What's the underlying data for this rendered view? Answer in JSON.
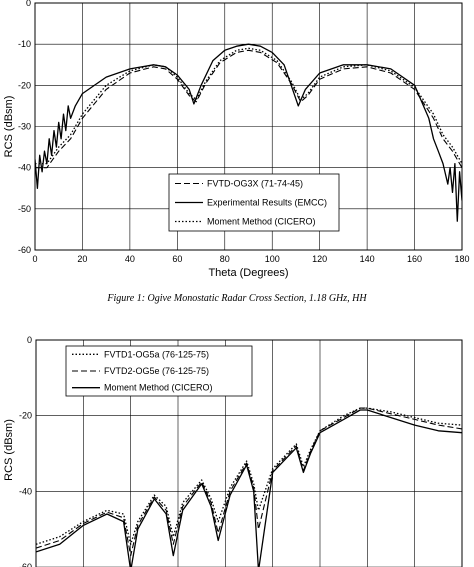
{
  "figure1_caption": "Figure 1:  Ogive Monostatic Radar Cross Section, 1.18 GHz, HH",
  "chart_data": [
    {
      "type": "line",
      "title": "",
      "xlabel": "Theta (Degrees)",
      "ylabel": "RCS (dBsm)",
      "xlim": [
        0,
        180
      ],
      "ylim": [
        -60,
        0
      ],
      "xticks": [
        "0",
        "20",
        "40",
        "60",
        "80",
        "100",
        "120",
        "140",
        "160",
        "180"
      ],
      "yticks": [
        "0",
        "-10",
        "-20",
        "-30",
        "-40",
        "-50",
        "-60"
      ],
      "grid": true,
      "legend_position": "bottom-center",
      "series": [
        {
          "name": "FVTD-OG3X (71-74-45)",
          "style": "dashed",
          "x": [
            0,
            5,
            10,
            15,
            20,
            30,
            40,
            50,
            55,
            60,
            65,
            68,
            72,
            78,
            85,
            90,
            95,
            102,
            108,
            112,
            115,
            120,
            130,
            140,
            150,
            160,
            168,
            172,
            176,
            180
          ],
          "y": [
            -40,
            -40,
            -36,
            -33,
            -28,
            -21,
            -17,
            -15.5,
            -16,
            -18.5,
            -22.5,
            -24,
            -19.5,
            -14.5,
            -12,
            -11.5,
            -12,
            -14.5,
            -19.5,
            -24,
            -22.5,
            -18.5,
            -16,
            -15.5,
            -17,
            -21,
            -28,
            -33,
            -36,
            -40
          ]
        },
        {
          "name": "Experimental Results (EMCC)",
          "style": "solid",
          "x": [
            0,
            1,
            2,
            3,
            4,
            5,
            6,
            7,
            8,
            9,
            10,
            11,
            12,
            13,
            14,
            15,
            17,
            20,
            30,
            40,
            50,
            55,
            60,
            65,
            67,
            70,
            75,
            80,
            85,
            90,
            95,
            100,
            105,
            108,
            111,
            114,
            120,
            130,
            140,
            150,
            160,
            163,
            166,
            168,
            170,
            172,
            174,
            175,
            176,
            177,
            178,
            179,
            180
          ],
          "y": [
            -38,
            -45,
            -37,
            -41,
            -36,
            -39,
            -33,
            -37,
            -31,
            -35,
            -29,
            -33,
            -27,
            -31,
            -25,
            -28,
            -25,
            -22,
            -18,
            -16,
            -15,
            -15.5,
            -17.5,
            -21,
            -24.5,
            -20,
            -14,
            -11.5,
            -10.5,
            -10,
            -10.5,
            -12,
            -15,
            -20,
            -25,
            -21,
            -17,
            -15,
            -15,
            -16,
            -20,
            -24,
            -28,
            -33,
            -36,
            -39,
            -44,
            -40,
            -46,
            -39,
            -53,
            -41,
            -48
          ]
        },
        {
          "name": "Moment Method (CICERO)",
          "style": "dotted",
          "x": [
            0,
            5,
            10,
            15,
            20,
            30,
            40,
            50,
            55,
            60,
            65,
            68,
            72,
            78,
            85,
            90,
            95,
            102,
            108,
            112,
            115,
            120,
            130,
            140,
            150,
            160,
            168,
            172,
            176,
            180
          ],
          "y": [
            -39,
            -39,
            -35,
            -32,
            -27,
            -20,
            -16.5,
            -15,
            -15.5,
            -18,
            -22,
            -23.5,
            -19,
            -14,
            -11.5,
            -11,
            -11.5,
            -14,
            -19,
            -23.5,
            -22,
            -18,
            -15.5,
            -15,
            -16.5,
            -20.5,
            -27,
            -32,
            -35,
            -39
          ]
        }
      ]
    },
    {
      "type": "line",
      "title": "",
      "xlabel": "",
      "ylabel": "RCS (dBsm)",
      "xlim": [
        0,
        180
      ],
      "ylim": [
        -60,
        0
      ],
      "yticks": [
        "0",
        "-20",
        "-40",
        "-60"
      ],
      "grid": true,
      "legend_position": "top-left",
      "series": [
        {
          "name": "FVTD1-OG5a (76-125-75)",
          "style": "dotted",
          "x": [
            0,
            10,
            20,
            30,
            37,
            40,
            43,
            50,
            55,
            58,
            62,
            70,
            74,
            77,
            82,
            89,
            92,
            94,
            100,
            110,
            113,
            116,
            120,
            130,
            137,
            140,
            150,
            160,
            170,
            180
          ],
          "y": [
            -54,
            -52,
            -48,
            -45,
            -46,
            -54,
            -48,
            -41,
            -44,
            -52,
            -43,
            -37,
            -42,
            -48,
            -39,
            -32,
            -38,
            -45,
            -34,
            -27.5,
            -33.5,
            -29,
            -24,
            -20,
            -18,
            -18,
            -19,
            -20.5,
            -22,
            -22.5
          ]
        },
        {
          "name": "FVTD2-OG5e (76-125-75)",
          "style": "dashed",
          "x": [
            0,
            10,
            20,
            30,
            37,
            40,
            43,
            50,
            55,
            58,
            62,
            70,
            74,
            77,
            82,
            89,
            92,
            94,
            100,
            110,
            113,
            116,
            120,
            130,
            137,
            140,
            150,
            160,
            170,
            180
          ],
          "y": [
            -55,
            -53,
            -48.5,
            -45.5,
            -47,
            -57,
            -49,
            -41.5,
            -45,
            -54,
            -44,
            -37.5,
            -43,
            -51,
            -40,
            -32.5,
            -39,
            -50,
            -34.5,
            -28,
            -34.5,
            -29.5,
            -24,
            -20.5,
            -18,
            -18,
            -19.5,
            -21,
            -22.5,
            -23.5
          ]
        },
        {
          "name": "Moment Method (CICERO)",
          "style": "solid",
          "x": [
            0,
            10,
            20,
            30,
            37,
            40,
            43,
            50,
            55,
            58,
            62,
            70,
            74,
            77,
            82,
            89,
            92,
            94,
            100,
            110,
            113,
            116,
            120,
            130,
            137,
            140,
            150,
            160,
            170,
            180
          ],
          "y": [
            -56,
            -54,
            -49,
            -46,
            -48,
            -61,
            -50,
            -42,
            -46,
            -57,
            -45,
            -38,
            -44,
            -53,
            -41,
            -33,
            -40,
            -61,
            -35,
            -28.5,
            -35,
            -30,
            -24.5,
            -21,
            -18.5,
            -18.5,
            -20.5,
            -22.5,
            -24,
            -24.5
          ]
        }
      ]
    }
  ]
}
